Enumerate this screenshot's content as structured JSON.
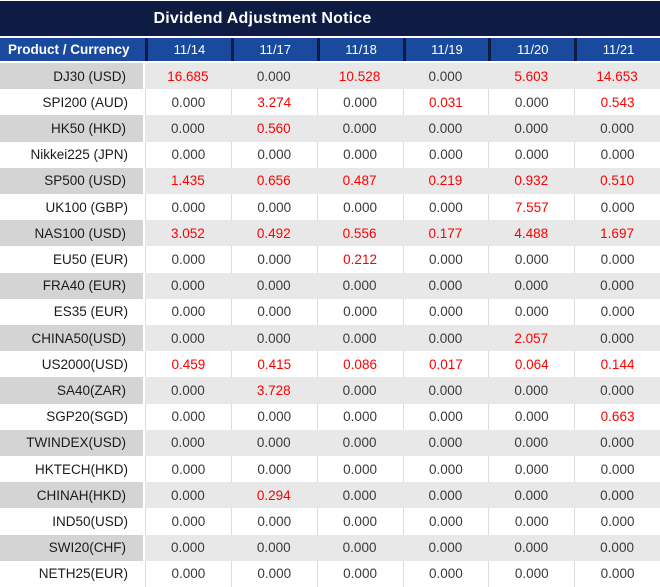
{
  "title": "Dividend Adjustment Notice",
  "colors": {
    "title_bg": "#0e1c44",
    "header_bg": "#1a4a9e",
    "header_separator": "#0e1c44",
    "stripe_product_gray": "#d4d4d4",
    "stripe_value_gray": "#e8e8e8",
    "zero_text": "#3a3a3a",
    "nonzero_text": "#ff0000",
    "header_text": "#ffffff"
  },
  "chart_data": {
    "type": "table",
    "title": "Dividend Adjustment Notice",
    "columns": [
      "Product / Currency",
      "11/14",
      "11/17",
      "11/18",
      "11/19",
      "11/20",
      "11/21"
    ],
    "rows": [
      {
        "product": "DJ30 (USD)",
        "values": [
          "16.685",
          "0.000",
          "10.528",
          "0.000",
          "5.603",
          "14.653"
        ]
      },
      {
        "product": "SPI200 (AUD)",
        "values": [
          "0.000",
          "3.274",
          "0.000",
          "0.031",
          "0.000",
          "0.543"
        ]
      },
      {
        "product": "HK50 (HKD)",
        "values": [
          "0.000",
          "0.560",
          "0.000",
          "0.000",
          "0.000",
          "0.000"
        ]
      },
      {
        "product": "Nikkei225 (JPN)",
        "values": [
          "0.000",
          "0.000",
          "0.000",
          "0.000",
          "0.000",
          "0.000"
        ]
      },
      {
        "product": "SP500 (USD)",
        "values": [
          "1.435",
          "0.656",
          "0.487",
          "0.219",
          "0.932",
          "0.510"
        ]
      },
      {
        "product": "UK100 (GBP)",
        "values": [
          "0.000",
          "0.000",
          "0.000",
          "0.000",
          "7.557",
          "0.000"
        ]
      },
      {
        "product": "NAS100 (USD)",
        "values": [
          "3.052",
          "0.492",
          "0.556",
          "0.177",
          "4.488",
          "1.697"
        ]
      },
      {
        "product": "EU50 (EUR)",
        "values": [
          "0.000",
          "0.000",
          "0.212",
          "0.000",
          "0.000",
          "0.000"
        ]
      },
      {
        "product": "FRA40 (EUR)",
        "values": [
          "0.000",
          "0.000",
          "0.000",
          "0.000",
          "0.000",
          "0.000"
        ]
      },
      {
        "product": "ES35 (EUR)",
        "values": [
          "0.000",
          "0.000",
          "0.000",
          "0.000",
          "0.000",
          "0.000"
        ]
      },
      {
        "product": "CHINA50(USD)",
        "values": [
          "0.000",
          "0.000",
          "0.000",
          "0.000",
          "2.057",
          "0.000"
        ]
      },
      {
        "product": "US2000(USD)",
        "values": [
          "0.459",
          "0.415",
          "0.086",
          "0.017",
          "0.064",
          "0.144"
        ]
      },
      {
        "product": "SA40(ZAR)",
        "values": [
          "0.000",
          "3.728",
          "0.000",
          "0.000",
          "0.000",
          "0.000"
        ]
      },
      {
        "product": "SGP20(SGD)",
        "values": [
          "0.000",
          "0.000",
          "0.000",
          "0.000",
          "0.000",
          "0.663"
        ]
      },
      {
        "product": "TWINDEX(USD)",
        "values": [
          "0.000",
          "0.000",
          "0.000",
          "0.000",
          "0.000",
          "0.000"
        ]
      },
      {
        "product": "HKTECH(HKD)",
        "values": [
          "0.000",
          "0.000",
          "0.000",
          "0.000",
          "0.000",
          "0.000"
        ]
      },
      {
        "product": "CHINAH(HKD)",
        "values": [
          "0.000",
          "0.294",
          "0.000",
          "0.000",
          "0.000",
          "0.000"
        ]
      },
      {
        "product": "IND50(USD)",
        "values": [
          "0.000",
          "0.000",
          "0.000",
          "0.000",
          "0.000",
          "0.000"
        ]
      },
      {
        "product": "SWI20(CHF)",
        "values": [
          "0.000",
          "0.000",
          "0.000",
          "0.000",
          "0.000",
          "0.000"
        ]
      },
      {
        "product": "NETH25(EUR)",
        "values": [
          "0.000",
          "0.000",
          "0.000",
          "0.000",
          "0.000",
          "0.000"
        ]
      }
    ]
  }
}
